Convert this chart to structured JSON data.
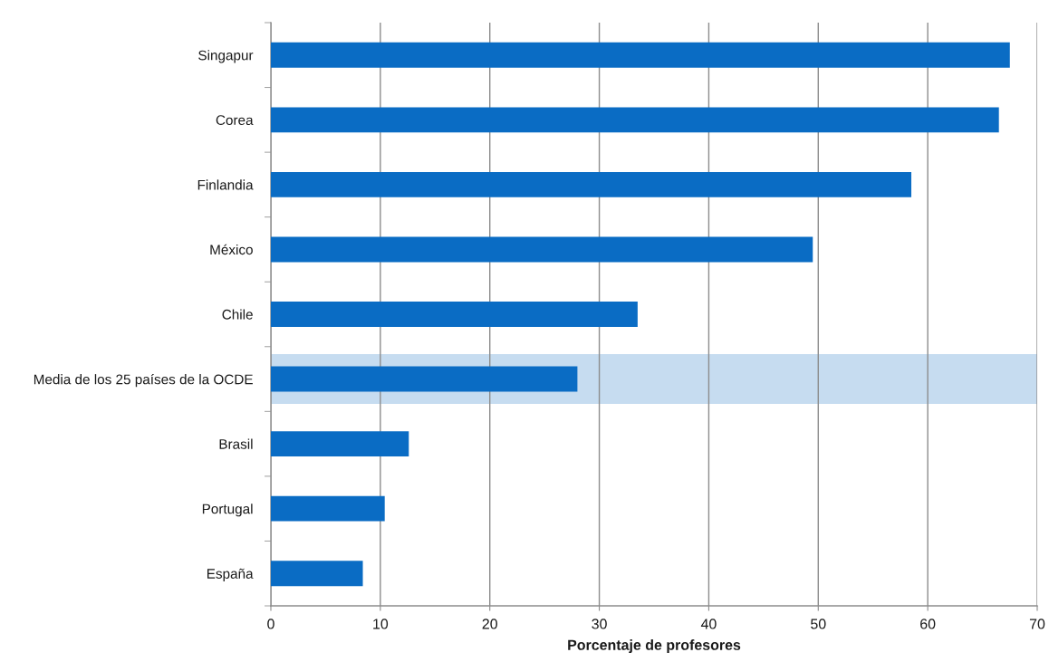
{
  "chart_data": {
    "type": "bar",
    "orientation": "horizontal",
    "categories": [
      "Singapur",
      "Corea",
      "Finlandia",
      "México",
      "Chile",
      "Media de los 25 países de la OCDE",
      "Brasil",
      "Portugal",
      "España"
    ],
    "values": [
      67.5,
      66.5,
      58.5,
      49.5,
      33.5,
      28.0,
      12.6,
      10.4,
      8.4
    ],
    "color": "#0a6cc4",
    "xlabel": "Porcentaje de profesores",
    "xlim": [
      0,
      70
    ],
    "xticks": [
      0,
      10,
      20,
      30,
      40,
      50,
      60,
      70
    ],
    "grid": "x",
    "bands": [
      {
        "axis": "y",
        "from": "Media de los 25 países de la OCDE",
        "to": "Media de los 25 países de la OCDE",
        "color": "#c6dcf0"
      }
    ]
  }
}
